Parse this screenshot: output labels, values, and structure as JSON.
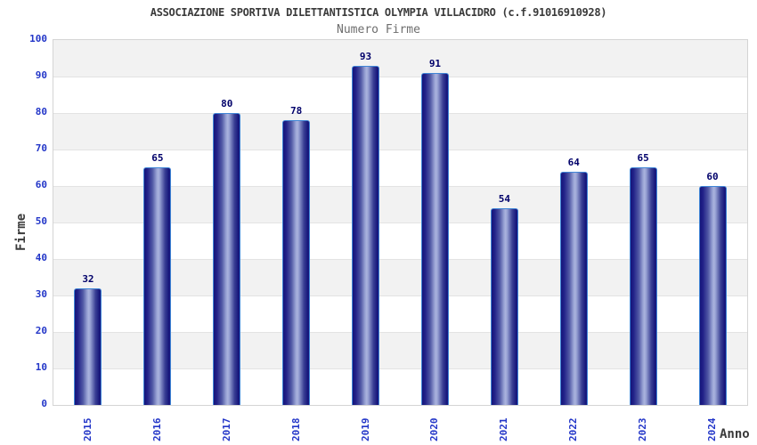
{
  "header": {
    "title": "ASSOCIAZIONE SPORTIVA DILETTANTISTICA OLYMPIA VILLACIDRO (c.f.91016910928)",
    "subtitle": "Numero Firme"
  },
  "chart_data": {
    "type": "bar",
    "title": "ASSOCIAZIONE SPORTIVA DILETTANTISTICA OLYMPIA VILLACIDRO (c.f.91016910928)",
    "subtitle": "Numero Firme",
    "categories": [
      "2015",
      "2016",
      "2017",
      "2018",
      "2019",
      "2020",
      "2021",
      "2022",
      "2023",
      "2024"
    ],
    "values": [
      32,
      65,
      80,
      78,
      93,
      91,
      54,
      64,
      65,
      60
    ],
    "xlabel": "Anno",
    "ylabel": "Firme",
    "ylim": [
      0,
      100
    ],
    "yticks": [
      0,
      10,
      20,
      30,
      40,
      50,
      60,
      70,
      80,
      90,
      100
    ],
    "grid": "alternating-horizontal-bands",
    "legend_position": "none",
    "colors": {
      "band_gray": "#f2f2f2",
      "band_white": "#ffffff",
      "bar_dark": "#15157a",
      "bar_highlight": "#aab3de",
      "bar_border": "#3f85d6",
      "tick_label_blue": "#2336c8",
      "value_label_navy": "#00006a",
      "title_gray": "#3a3a3a",
      "subtitle_gray": "#6e6e6e",
      "plot_border": "#d4d4d4"
    }
  }
}
